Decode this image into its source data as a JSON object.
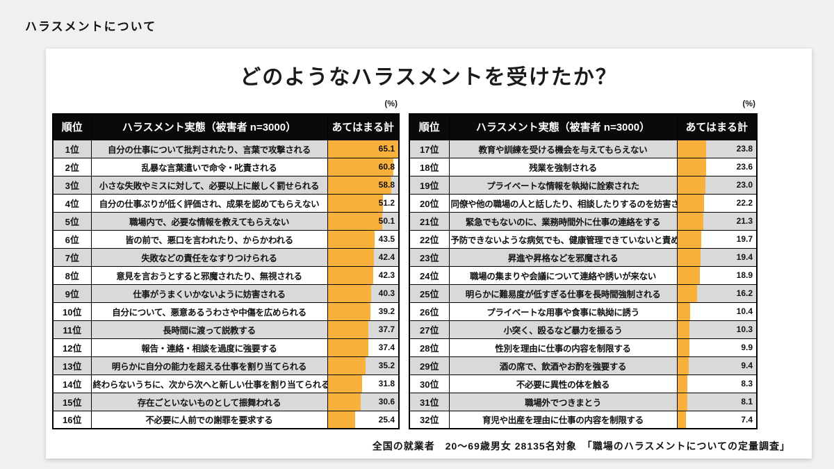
{
  "page": {
    "kicker": "ハラスメントについて",
    "title": "どのようなハラスメントを受けたか？",
    "unit_label": "(%)",
    "footnote": "全国の就業者　20～69歳男女 28135名対象　「職場のハラスメントについての定量調査」"
  },
  "table_headers": {
    "rank": "順位",
    "item": "ハラスメント実態（被害者 n=3000）",
    "total": "あてはまる計"
  },
  "colors": {
    "bar": "#F9B13C",
    "row_alt": "#D9D9D9",
    "header_bg": "#0A0A0A",
    "card_bg": "#FFFFFF",
    "page_bg": "#F0F0F0"
  },
  "chart_data": {
    "type": "bar",
    "orientation": "horizontal",
    "title": "どのようなハラスメントを受けたか？",
    "unit": "%",
    "sample_note": "被害者 n=3000",
    "scale_max": 65.1,
    "legend": "none",
    "categories": [
      "自分の仕事について批判されたり、言葉で攻撃される",
      "乱暴な言葉遣いで命令・叱責される",
      "小さな失敗やミスに対して、必要以上に厳しく罰せられる",
      "自分の仕事ぶりが低く評価され、成果を認めてもらえない",
      "職場内で、必要な情報を教えてもらえない",
      "皆の前で、悪口を言われたり、からかわれる",
      "失敗などの責任をなすりつけられる",
      "意見を言おうとすると邪魔されたり、無視される",
      "仕事がうまくいかないように妨害される",
      "自分について、悪意あるうわさや中傷を広められる",
      "長時間に渡って説教する",
      "報告・連絡・相談を過度に強要する",
      "明らかに自分の能力を超える仕事を割り当てられる",
      "終わらないうちに、次から次へと新しい仕事を割り当てられる",
      "存在ごといないものとして振舞われる",
      "不必要に人前での謝罪を要求する",
      "教育や訓練を受ける機会を与えてもらえない",
      "残業を強制される",
      "プライベートな情報を執拗に詮索された",
      "同僚や他の職場の人と話したり、相談したりするのを妨害される",
      "緊急でもないのに、業務時間外に仕事の連絡をする",
      "予防できないような病気でも、健康管理できていないと責める",
      "昇進や昇格などを邪魔される",
      "職場の集まりや会議について連絡や誘いが来ない",
      "明らかに難易度が低すぎる仕事を長時間強制される",
      "プライベートな用事や食事に執拗に誘う",
      "小突く、殴るなど暴力を振るう",
      "性別を理由に仕事の内容を制限する",
      "酒の席で、飲酒やお酌を強要する",
      "不必要に異性の体を触る",
      "職場外でつきまとう",
      "育児や出産を理由に仕事の内容を制限する"
    ],
    "values": [
      65.1,
      60.8,
      58.8,
      51.2,
      50.1,
      43.5,
      42.4,
      42.3,
      40.3,
      39.2,
      37.7,
      37.4,
      35.2,
      31.8,
      30.6,
      25.4,
      23.8,
      23.6,
      23.0,
      22.2,
      21.3,
      19.7,
      19.4,
      18.9,
      16.2,
      10.4,
      10.3,
      9.9,
      9.4,
      8.3,
      8.1,
      7.4
    ]
  },
  "tables": [
    {
      "name": "ranks-1-16",
      "rows": [
        {
          "rank": "1位",
          "label": "自分の仕事について批判されたり、言葉で攻撃される",
          "value": "65.1"
        },
        {
          "rank": "2位",
          "label": "乱暴な言葉遣いで命令・叱責される",
          "value": "60.8"
        },
        {
          "rank": "3位",
          "label": "小さな失敗やミスに対して、必要以上に厳しく罰せられる",
          "value": "58.8"
        },
        {
          "rank": "4位",
          "label": "自分の仕事ぶりが低く評価され、成果を認めてもらえない",
          "value": "51.2"
        },
        {
          "rank": "5位",
          "label": "職場内で、必要な情報を教えてもらえない",
          "value": "50.1"
        },
        {
          "rank": "6位",
          "label": "皆の前で、悪口を言われたり、からかわれる",
          "value": "43.5"
        },
        {
          "rank": "7位",
          "label": "失敗などの責任をなすりつけられる",
          "value": "42.4"
        },
        {
          "rank": "8位",
          "label": "意見を言おうとすると邪魔されたり、無視される",
          "value": "42.3"
        },
        {
          "rank": "9位",
          "label": "仕事がうまくいかないように妨害される",
          "value": "40.3"
        },
        {
          "rank": "10位",
          "label": "自分について、悪意あるうわさや中傷を広められる",
          "value": "39.2"
        },
        {
          "rank": "11位",
          "label": "長時間に渡って説教する",
          "value": "37.7"
        },
        {
          "rank": "12位",
          "label": "報告・連絡・相談を過度に強要する",
          "value": "37.4"
        },
        {
          "rank": "13位",
          "label": "明らかに自分の能力を超える仕事を割り当てられる",
          "value": "35.2"
        },
        {
          "rank": "14位",
          "label": "終わらないうちに、次から次へと新しい仕事を割り当てられる",
          "value": "31.8"
        },
        {
          "rank": "15位",
          "label": "存在ごといないものとして振舞われる",
          "value": "30.6"
        },
        {
          "rank": "16位",
          "label": "不必要に人前での謝罪を要求する",
          "value": "25.4"
        }
      ]
    },
    {
      "name": "ranks-17-32",
      "rows": [
        {
          "rank": "17位",
          "label": "教育や訓練を受ける機会を与えてもらえない",
          "value": "23.8"
        },
        {
          "rank": "18位",
          "label": "残業を強制される",
          "value": "23.6"
        },
        {
          "rank": "19位",
          "label": "プライベートな情報を執拗に詮索された",
          "value": "23.0"
        },
        {
          "rank": "20位",
          "label": "同僚や他の職場の人と話したり、相談したりするのを妨害される",
          "value": "22.2"
        },
        {
          "rank": "21位",
          "label": "緊急でもないのに、業務時間外に仕事の連絡をする",
          "value": "21.3"
        },
        {
          "rank": "22位",
          "label": "予防できないような病気でも、健康管理できていないと責める",
          "value": "19.7"
        },
        {
          "rank": "23位",
          "label": "昇進や昇格などを邪魔される",
          "value": "19.4"
        },
        {
          "rank": "24位",
          "label": "職場の集まりや会議について連絡や誘いが来ない",
          "value": "18.9"
        },
        {
          "rank": "25位",
          "label": "明らかに難易度が低すぎる仕事を長時間強制される",
          "value": "16.2"
        },
        {
          "rank": "26位",
          "label": "プライベートな用事や食事に執拗に誘う",
          "value": "10.4"
        },
        {
          "rank": "27位",
          "label": "小突く、殴るなど暴力を振るう",
          "value": "10.3"
        },
        {
          "rank": "28位",
          "label": "性別を理由に仕事の内容を制限する",
          "value": "9.9"
        },
        {
          "rank": "29位",
          "label": "酒の席で、飲酒やお酌を強要する",
          "value": "9.4"
        },
        {
          "rank": "30位",
          "label": "不必要に異性の体を触る",
          "value": "8.3"
        },
        {
          "rank": "31位",
          "label": "職場外でつきまとう",
          "value": "8.1"
        },
        {
          "rank": "32位",
          "label": "育児や出産を理由に仕事の内容を制限する",
          "value": "7.4"
        }
      ]
    }
  ]
}
